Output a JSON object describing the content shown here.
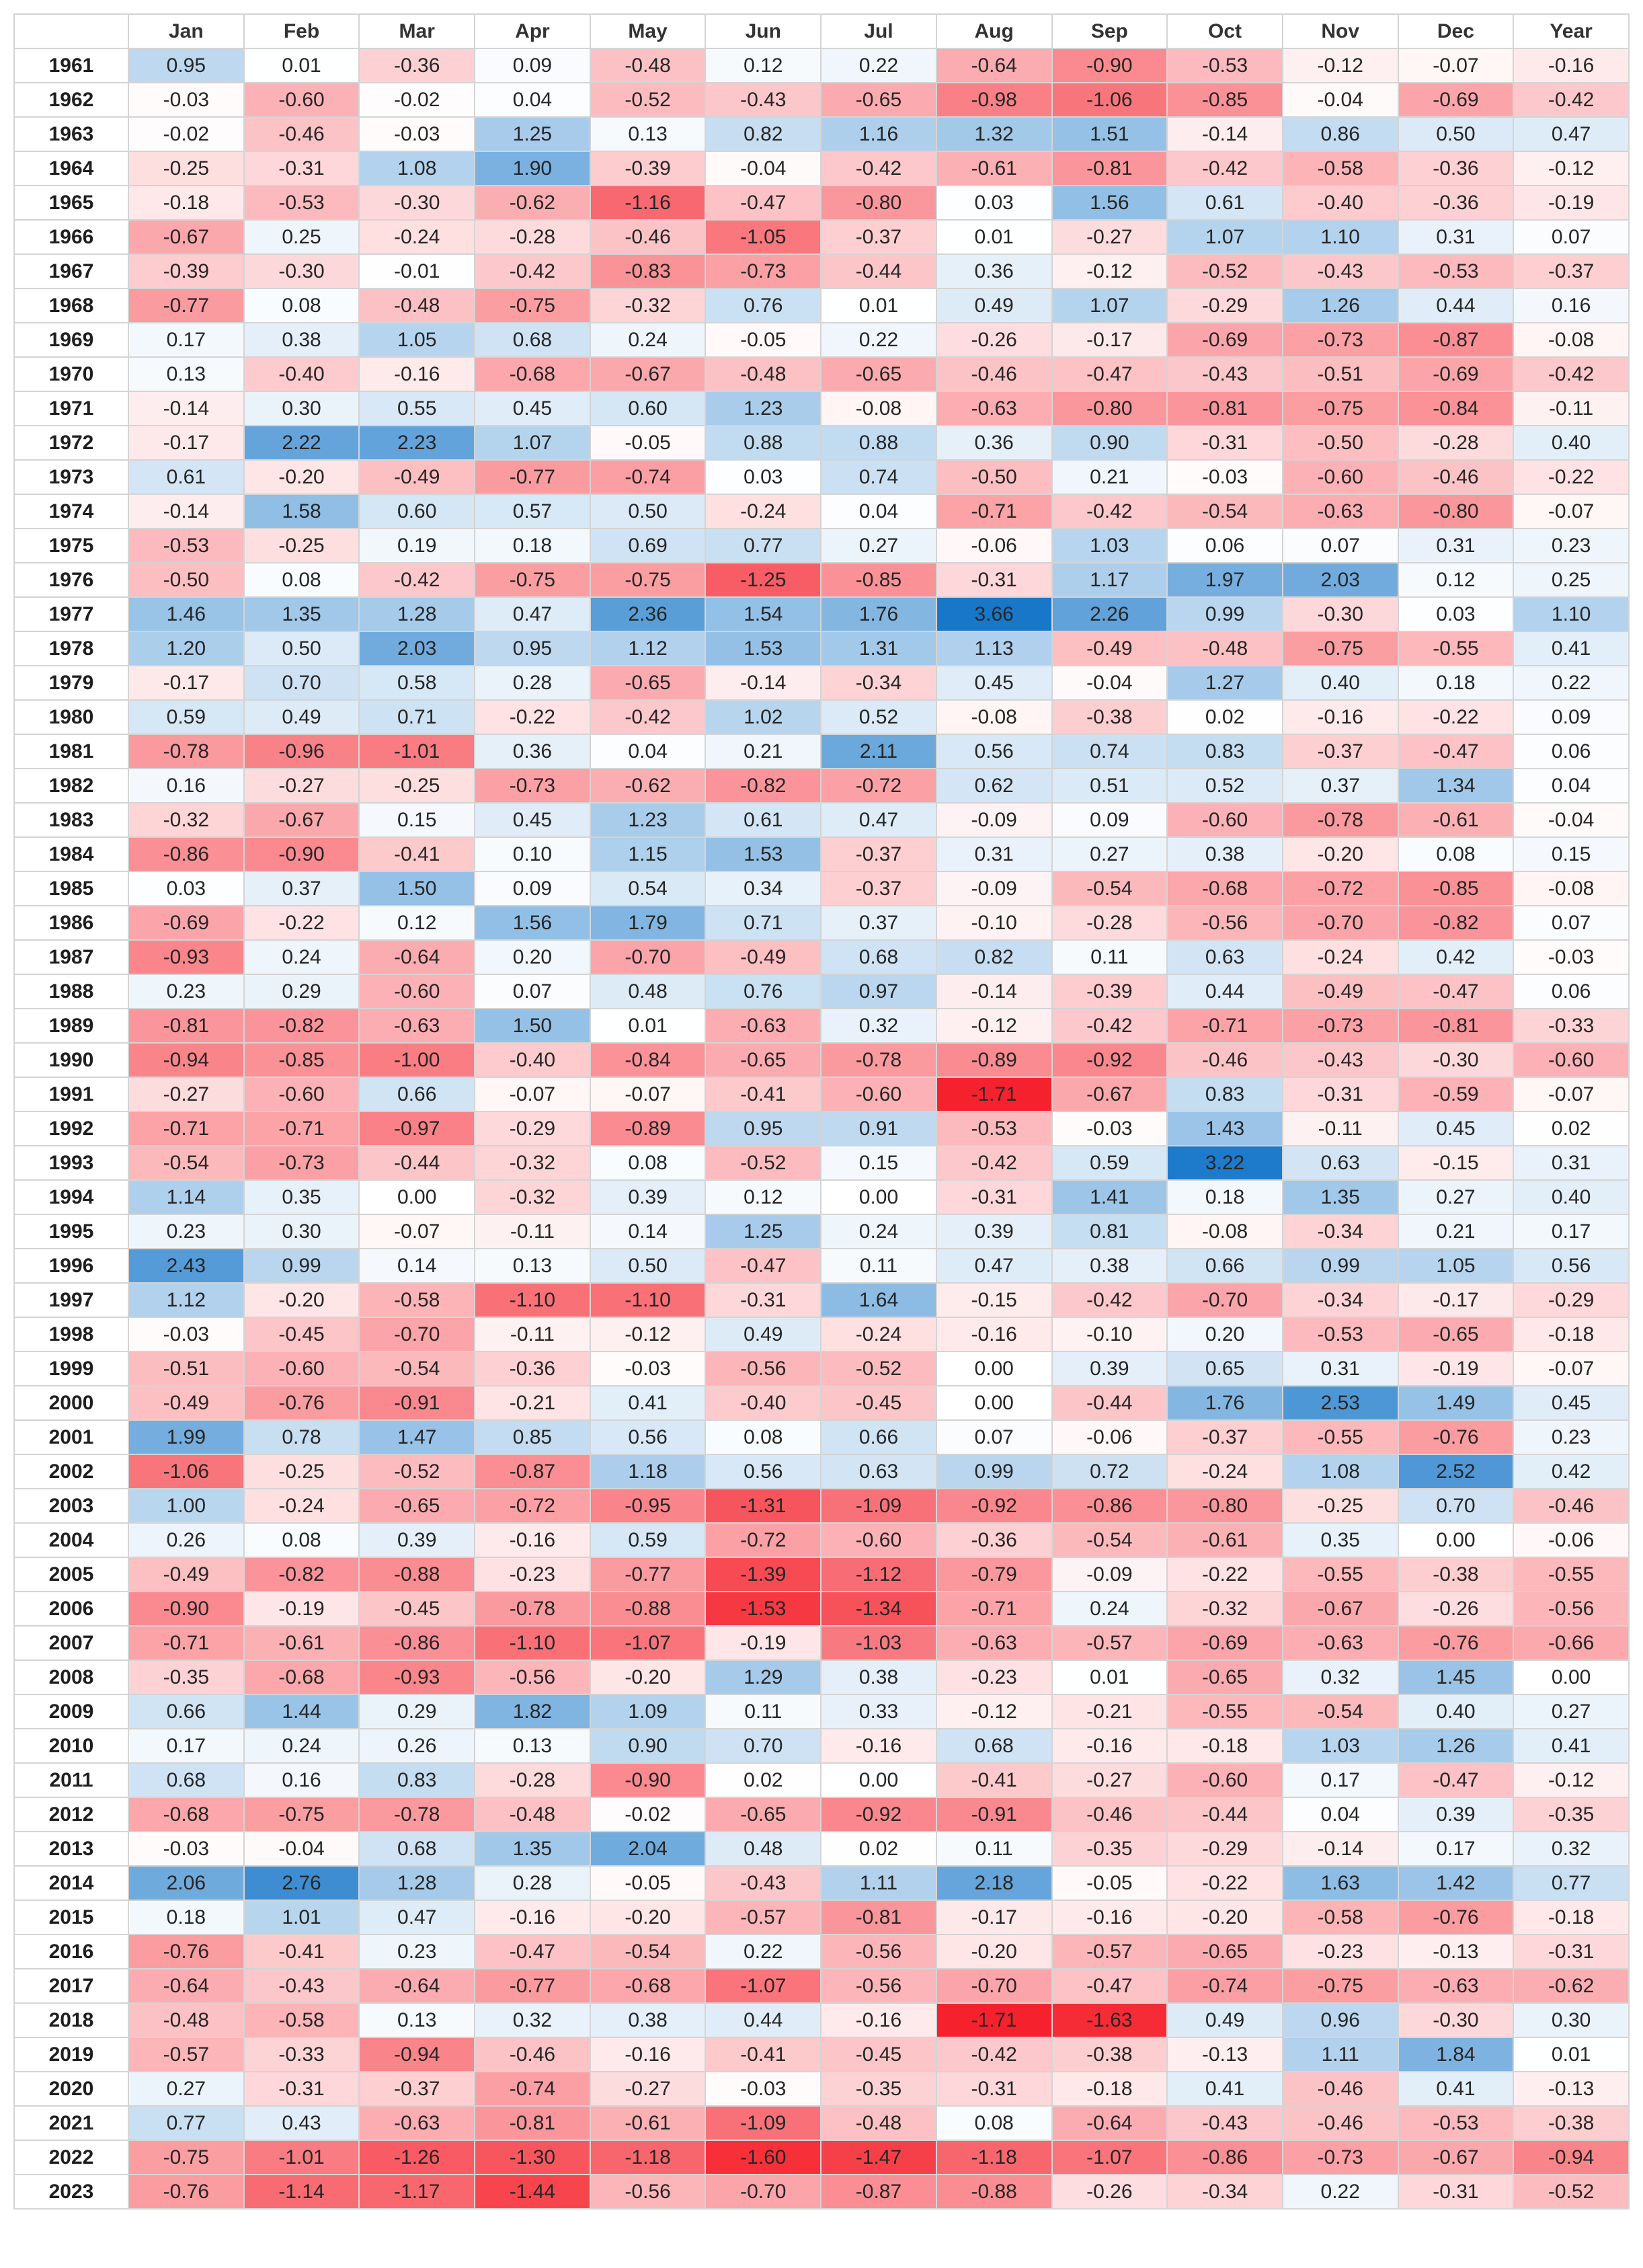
{
  "chart_data": {
    "type": "heatmap",
    "title": "",
    "corner_label": "",
    "columns": [
      "Jan",
      "Feb",
      "Mar",
      "Apr",
      "May",
      "Jun",
      "Jul",
      "Aug",
      "Sep",
      "Oct",
      "Nov",
      "Dec",
      "Year"
    ],
    "rows": [
      {
        "year": "1961",
        "values": [
          0.95,
          0.01,
          -0.36,
          0.09,
          -0.48,
          0.12,
          0.22,
          -0.64,
          -0.9,
          -0.53,
          -0.12,
          -0.07,
          -0.16
        ]
      },
      {
        "year": "1962",
        "values": [
          -0.03,
          -0.6,
          -0.02,
          0.04,
          -0.52,
          -0.43,
          -0.65,
          -0.98,
          -1.06,
          -0.85,
          -0.04,
          -0.69,
          -0.42
        ]
      },
      {
        "year": "1963",
        "values": [
          -0.02,
          -0.46,
          -0.03,
          1.25,
          0.13,
          0.82,
          1.16,
          1.32,
          1.51,
          -0.14,
          0.86,
          0.5,
          0.47
        ]
      },
      {
        "year": "1964",
        "values": [
          -0.25,
          -0.31,
          1.08,
          1.9,
          -0.39,
          -0.04,
          -0.42,
          -0.61,
          -0.81,
          -0.42,
          -0.58,
          -0.36,
          -0.12
        ]
      },
      {
        "year": "1965",
        "values": [
          -0.18,
          -0.53,
          -0.3,
          -0.62,
          -1.16,
          -0.47,
          -0.8,
          0.03,
          1.56,
          0.61,
          -0.4,
          -0.36,
          -0.19
        ]
      },
      {
        "year": "1966",
        "values": [
          -0.67,
          0.25,
          -0.24,
          -0.28,
          -0.46,
          -1.05,
          -0.37,
          0.01,
          -0.27,
          1.07,
          1.1,
          0.31,
          0.07
        ]
      },
      {
        "year": "1967",
        "values": [
          -0.39,
          -0.3,
          -0.01,
          -0.42,
          -0.83,
          -0.73,
          -0.44,
          0.36,
          -0.12,
          -0.52,
          -0.43,
          -0.53,
          -0.37
        ]
      },
      {
        "year": "1968",
        "values": [
          -0.77,
          0.08,
          -0.48,
          -0.75,
          -0.32,
          0.76,
          0.01,
          0.49,
          1.07,
          -0.29,
          1.26,
          0.44,
          0.16
        ]
      },
      {
        "year": "1969",
        "values": [
          0.17,
          0.38,
          1.05,
          0.68,
          0.24,
          -0.05,
          0.22,
          -0.26,
          -0.17,
          -0.69,
          -0.73,
          -0.87,
          -0.08
        ]
      },
      {
        "year": "1970",
        "values": [
          0.13,
          -0.4,
          -0.16,
          -0.68,
          -0.67,
          -0.48,
          -0.65,
          -0.46,
          -0.47,
          -0.43,
          -0.51,
          -0.69,
          -0.42
        ]
      },
      {
        "year": "1971",
        "values": [
          -0.14,
          0.3,
          0.55,
          0.45,
          0.6,
          1.23,
          -0.08,
          -0.63,
          -0.8,
          -0.81,
          -0.75,
          -0.84,
          -0.11
        ]
      },
      {
        "year": "1972",
        "values": [
          -0.17,
          2.22,
          2.23,
          1.07,
          -0.05,
          0.88,
          0.88,
          0.36,
          0.9,
          -0.31,
          -0.5,
          -0.28,
          0.4
        ]
      },
      {
        "year": "1973",
        "values": [
          0.61,
          -0.2,
          -0.49,
          -0.77,
          -0.74,
          0.03,
          0.74,
          -0.5,
          0.21,
          -0.03,
          -0.6,
          -0.46,
          -0.22
        ]
      },
      {
        "year": "1974",
        "values": [
          -0.14,
          1.58,
          0.6,
          0.57,
          0.5,
          -0.24,
          0.04,
          -0.71,
          -0.42,
          -0.54,
          -0.63,
          -0.8,
          -0.07
        ]
      },
      {
        "year": "1975",
        "values": [
          -0.53,
          -0.25,
          0.19,
          0.18,
          0.69,
          0.77,
          0.27,
          -0.06,
          1.03,
          0.06,
          0.07,
          0.31,
          0.23
        ]
      },
      {
        "year": "1976",
        "values": [
          -0.5,
          0.08,
          -0.42,
          -0.75,
          -0.75,
          -1.25,
          -0.85,
          -0.31,
          1.17,
          1.97,
          2.03,
          0.12,
          0.25
        ]
      },
      {
        "year": "1977",
        "values": [
          1.46,
          1.35,
          1.28,
          0.47,
          2.36,
          1.54,
          1.76,
          3.66,
          2.26,
          0.99,
          -0.3,
          0.03,
          1.1
        ]
      },
      {
        "year": "1978",
        "values": [
          1.2,
          0.5,
          2.03,
          0.95,
          1.12,
          1.53,
          1.31,
          1.13,
          -0.49,
          -0.48,
          -0.75,
          -0.55,
          0.41
        ]
      },
      {
        "year": "1979",
        "values": [
          -0.17,
          0.7,
          0.58,
          0.28,
          -0.65,
          -0.14,
          -0.34,
          0.45,
          -0.04,
          1.27,
          0.4,
          0.18,
          0.22
        ]
      },
      {
        "year": "1980",
        "values": [
          0.59,
          0.49,
          0.71,
          -0.22,
          -0.42,
          1.02,
          0.52,
          -0.08,
          -0.38,
          0.02,
          -0.16,
          -0.22,
          0.09
        ]
      },
      {
        "year": "1981",
        "values": [
          -0.78,
          -0.96,
          -1.01,
          0.36,
          0.04,
          0.21,
          2.11,
          0.56,
          0.74,
          0.83,
          -0.37,
          -0.47,
          0.06
        ]
      },
      {
        "year": "1982",
        "values": [
          0.16,
          -0.27,
          -0.25,
          -0.73,
          -0.62,
          -0.82,
          -0.72,
          0.62,
          0.51,
          0.52,
          0.37,
          1.34,
          0.04
        ]
      },
      {
        "year": "1983",
        "values": [
          -0.32,
          -0.67,
          0.15,
          0.45,
          1.23,
          0.61,
          0.47,
          -0.09,
          0.09,
          -0.6,
          -0.78,
          -0.61,
          -0.04
        ]
      },
      {
        "year": "1984",
        "values": [
          -0.86,
          -0.9,
          -0.41,
          0.1,
          1.15,
          1.53,
          -0.37,
          0.31,
          0.27,
          0.38,
          -0.2,
          0.08,
          0.15
        ]
      },
      {
        "year": "1985",
        "values": [
          0.03,
          0.37,
          1.5,
          0.09,
          0.54,
          0.34,
          -0.37,
          -0.09,
          -0.54,
          -0.68,
          -0.72,
          -0.85,
          -0.08
        ]
      },
      {
        "year": "1986",
        "values": [
          -0.69,
          -0.22,
          0.12,
          1.56,
          1.79,
          0.71,
          0.37,
          -0.1,
          -0.28,
          -0.56,
          -0.7,
          -0.82,
          0.07
        ]
      },
      {
        "year": "1987",
        "values": [
          -0.93,
          0.24,
          -0.64,
          0.2,
          -0.7,
          -0.49,
          0.68,
          0.82,
          0.11,
          0.63,
          -0.24,
          0.42,
          -0.03
        ]
      },
      {
        "year": "1988",
        "values": [
          0.23,
          0.29,
          -0.6,
          0.07,
          0.48,
          0.76,
          0.97,
          -0.14,
          -0.39,
          0.44,
          -0.49,
          -0.47,
          0.06
        ]
      },
      {
        "year": "1989",
        "values": [
          -0.81,
          -0.82,
          -0.63,
          1.5,
          0.01,
          -0.63,
          0.32,
          -0.12,
          -0.42,
          -0.71,
          -0.73,
          -0.81,
          -0.33
        ]
      },
      {
        "year": "1990",
        "values": [
          -0.94,
          -0.85,
          -1.0,
          -0.4,
          -0.84,
          -0.65,
          -0.78,
          -0.89,
          -0.92,
          -0.46,
          -0.43,
          -0.3,
          -0.6
        ]
      },
      {
        "year": "1991",
        "values": [
          -0.27,
          -0.6,
          0.66,
          -0.07,
          -0.07,
          -0.41,
          -0.6,
          -1.71,
          -0.67,
          0.83,
          -0.31,
          -0.59,
          -0.07
        ]
      },
      {
        "year": "1992",
        "values": [
          -0.71,
          -0.71,
          -0.97,
          -0.29,
          -0.89,
          0.95,
          0.91,
          -0.53,
          -0.03,
          1.43,
          -0.11,
          0.45,
          0.02
        ]
      },
      {
        "year": "1993",
        "values": [
          -0.54,
          -0.73,
          -0.44,
          -0.32,
          0.08,
          -0.52,
          0.15,
          -0.42,
          0.59,
          3.22,
          0.63,
          -0.15,
          0.31
        ]
      },
      {
        "year": "1994",
        "values": [
          1.14,
          0.35,
          0.0,
          -0.32,
          0.39,
          0.12,
          0.0,
          -0.31,
          1.41,
          0.18,
          1.35,
          0.27,
          0.4
        ]
      },
      {
        "year": "1995",
        "values": [
          0.23,
          0.3,
          -0.07,
          -0.11,
          0.14,
          1.25,
          0.24,
          0.39,
          0.81,
          -0.08,
          -0.34,
          0.21,
          0.17
        ]
      },
      {
        "year": "1996",
        "values": [
          2.43,
          0.99,
          0.14,
          0.13,
          0.5,
          -0.47,
          0.11,
          0.47,
          0.38,
          0.66,
          0.99,
          1.05,
          0.56
        ]
      },
      {
        "year": "1997",
        "values": [
          1.12,
          -0.2,
          -0.58,
          -1.1,
          -1.1,
          -0.31,
          1.64,
          -0.15,
          -0.42,
          -0.7,
          -0.34,
          -0.17,
          -0.29
        ]
      },
      {
        "year": "1998",
        "values": [
          -0.03,
          -0.45,
          -0.7,
          -0.11,
          -0.12,
          0.49,
          -0.24,
          -0.16,
          -0.1,
          0.2,
          -0.53,
          -0.65,
          -0.18
        ]
      },
      {
        "year": "1999",
        "values": [
          -0.51,
          -0.6,
          -0.54,
          -0.36,
          -0.03,
          -0.56,
          -0.52,
          0.0,
          0.39,
          0.65,
          0.31,
          -0.19,
          -0.07
        ]
      },
      {
        "year": "2000",
        "values": [
          -0.49,
          -0.76,
          -0.91,
          -0.21,
          0.41,
          -0.4,
          -0.45,
          0.0,
          -0.44,
          1.76,
          2.53,
          1.49,
          0.45
        ]
      },
      {
        "year": "2001",
        "values": [
          1.99,
          0.78,
          1.47,
          0.85,
          0.56,
          0.08,
          0.66,
          0.07,
          -0.06,
          -0.37,
          -0.55,
          -0.76,
          0.23
        ]
      },
      {
        "year": "2002",
        "values": [
          -1.06,
          -0.25,
          -0.52,
          -0.87,
          1.18,
          0.56,
          0.63,
          0.99,
          0.72,
          -0.24,
          1.08,
          2.52,
          0.42
        ]
      },
      {
        "year": "2003",
        "values": [
          1.0,
          -0.24,
          -0.65,
          -0.72,
          -0.95,
          -1.31,
          -1.09,
          -0.92,
          -0.86,
          -0.8,
          -0.25,
          0.7,
          -0.46
        ]
      },
      {
        "year": "2004",
        "values": [
          0.26,
          0.08,
          0.39,
          -0.16,
          0.59,
          -0.72,
          -0.6,
          -0.36,
          -0.54,
          -0.61,
          0.35,
          0.0,
          -0.06
        ]
      },
      {
        "year": "2005",
        "values": [
          -0.49,
          -0.82,
          -0.88,
          -0.23,
          -0.77,
          -1.39,
          -1.12,
          -0.79,
          -0.09,
          -0.22,
          -0.55,
          -0.38,
          -0.55
        ]
      },
      {
        "year": "2006",
        "values": [
          -0.9,
          -0.19,
          -0.45,
          -0.78,
          -0.88,
          -1.53,
          -1.34,
          -0.71,
          0.24,
          -0.32,
          -0.67,
          -0.26,
          -0.56
        ]
      },
      {
        "year": "2007",
        "values": [
          -0.71,
          -0.61,
          -0.86,
          -1.1,
          -1.07,
          -0.19,
          -1.03,
          -0.63,
          -0.57,
          -0.69,
          -0.63,
          -0.76,
          -0.66
        ]
      },
      {
        "year": "2008",
        "values": [
          -0.35,
          -0.68,
          -0.93,
          -0.56,
          -0.2,
          1.29,
          0.38,
          -0.23,
          0.01,
          -0.65,
          0.32,
          1.45,
          0.0
        ]
      },
      {
        "year": "2009",
        "values": [
          0.66,
          1.44,
          0.29,
          1.82,
          1.09,
          0.11,
          0.33,
          -0.12,
          -0.21,
          -0.55,
          -0.54,
          0.4,
          0.27
        ]
      },
      {
        "year": "2010",
        "values": [
          0.17,
          0.24,
          0.26,
          0.13,
          0.9,
          0.7,
          -0.16,
          0.68,
          -0.16,
          -0.18,
          1.03,
          1.26,
          0.41
        ]
      },
      {
        "year": "2011",
        "values": [
          0.68,
          0.16,
          0.83,
          -0.28,
          -0.9,
          0.02,
          0.0,
          -0.41,
          -0.27,
          -0.6,
          0.17,
          -0.47,
          -0.12
        ]
      },
      {
        "year": "2012",
        "values": [
          -0.68,
          -0.75,
          -0.78,
          -0.48,
          -0.02,
          -0.65,
          -0.92,
          -0.91,
          -0.46,
          -0.44,
          0.04,
          0.39,
          -0.35
        ]
      },
      {
        "year": "2013",
        "values": [
          -0.03,
          -0.04,
          0.68,
          1.35,
          2.04,
          0.48,
          0.02,
          0.11,
          -0.35,
          -0.29,
          -0.14,
          0.17,
          0.32
        ]
      },
      {
        "year": "2014",
        "values": [
          2.06,
          2.76,
          1.28,
          0.28,
          -0.05,
          -0.43,
          1.11,
          2.18,
          -0.05,
          -0.22,
          1.63,
          1.42,
          0.77
        ]
      },
      {
        "year": "2015",
        "values": [
          0.18,
          1.01,
          0.47,
          -0.16,
          -0.2,
          -0.57,
          -0.81,
          -0.17,
          -0.16,
          -0.2,
          -0.58,
          -0.76,
          -0.18
        ]
      },
      {
        "year": "2016",
        "values": [
          -0.76,
          -0.41,
          0.23,
          -0.47,
          -0.54,
          0.22,
          -0.56,
          -0.2,
          -0.57,
          -0.65,
          -0.23,
          -0.13,
          -0.31
        ]
      },
      {
        "year": "2017",
        "values": [
          -0.64,
          -0.43,
          -0.64,
          -0.77,
          -0.68,
          -1.07,
          -0.56,
          -0.7,
          -0.47,
          -0.74,
          -0.75,
          -0.63,
          -0.62
        ]
      },
      {
        "year": "2018",
        "values": [
          -0.48,
          -0.58,
          0.13,
          0.32,
          0.38,
          0.44,
          -0.16,
          -1.71,
          -1.63,
          0.49,
          0.96,
          -0.3,
          0.3
        ]
      },
      {
        "year": "2019",
        "values": [
          -0.57,
          -0.33,
          -0.94,
          -0.46,
          -0.16,
          -0.41,
          -0.45,
          -0.42,
          -0.38,
          -0.13,
          1.11,
          1.84,
          0.01
        ]
      },
      {
        "year": "2020",
        "values": [
          0.27,
          -0.31,
          -0.37,
          -0.74,
          -0.27,
          -0.03,
          -0.35,
          -0.31,
          -0.18,
          0.41,
          -0.46,
          0.41,
          -0.13
        ]
      },
      {
        "year": "2021",
        "values": [
          0.77,
          0.43,
          -0.63,
          -0.81,
          -0.61,
          -1.09,
          -0.48,
          0.08,
          -0.64,
          -0.43,
          -0.46,
          -0.53,
          -0.38
        ]
      },
      {
        "year": "2022",
        "values": [
          -0.75,
          -1.01,
          -1.26,
          -1.3,
          -1.18,
          -1.6,
          -1.47,
          -1.18,
          -1.07,
          -0.86,
          -0.73,
          -0.67,
          -0.94
        ]
      },
      {
        "year": "2023",
        "values": [
          -0.76,
          -1.14,
          -1.17,
          -1.44,
          -0.56,
          -0.7,
          -0.87,
          -0.88,
          -0.26,
          -0.34,
          0.22,
          -0.31,
          -0.52
        ]
      }
    ],
    "color_scale": {
      "negative": "#f5222d",
      "neutral": "#ffffff",
      "positive": "#1877c9",
      "negative_saturation_value": -1.7,
      "positive_saturation_value": 3.3
    }
  }
}
